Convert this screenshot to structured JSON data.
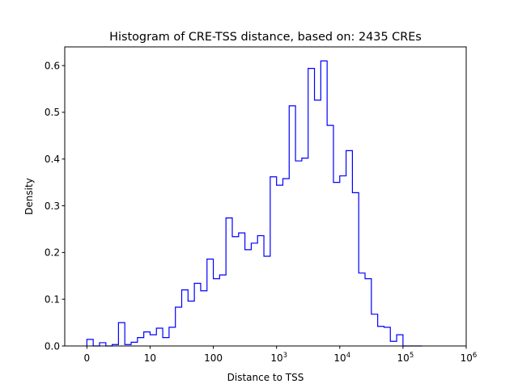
{
  "chart_data": {
    "type": "histogram-step",
    "title": "Histogram of CRE-TSS distance, based on: 2435 CREs",
    "xlabel": "Distance to TSS",
    "ylabel": "Density",
    "x_scale": "symlog",
    "x_range": [
      -0.35,
      6.0
    ],
    "ylim": [
      0,
      0.64
    ],
    "x_ticks": [
      {
        "value": 0,
        "label": "0"
      },
      {
        "value": 1,
        "label": "10"
      },
      {
        "value": 2,
        "label": "100"
      },
      {
        "value": 3,
        "label": "10^3"
      },
      {
        "value": 4,
        "label": "10^4"
      },
      {
        "value": 5,
        "label": "10^5"
      },
      {
        "value": 6,
        "label": "10^6"
      }
    ],
    "y_ticks": [
      "0.0",
      "0.1",
      "0.2",
      "0.3",
      "0.4",
      "0.5",
      "0.6"
    ],
    "series_color": "#0000ff",
    "bin_edges_log10": [
      0.0,
      0.1,
      0.2,
      0.3,
      0.4,
      0.5,
      0.6,
      0.7,
      0.8,
      0.9,
      1.0,
      1.1,
      1.2,
      1.3,
      1.4,
      1.5,
      1.6,
      1.7,
      1.8,
      1.9,
      2.0,
      2.1,
      2.2,
      2.3,
      2.4,
      2.5,
      2.6,
      2.7,
      2.8,
      2.9,
      3.0,
      3.1,
      3.2,
      3.3,
      3.4,
      3.5,
      3.6,
      3.7,
      3.8,
      3.9,
      4.0,
      4.1,
      4.2,
      4.3,
      4.4,
      4.5,
      4.6,
      4.7,
      4.8,
      4.9,
      5.0,
      5.1,
      5.2,
      5.3
    ],
    "densities": [
      0.014,
      0.0,
      0.007,
      0.0,
      0.003,
      0.05,
      0.003,
      0.008,
      0.018,
      0.03,
      0.024,
      0.038,
      0.018,
      0.04,
      0.083,
      0.12,
      0.096,
      0.134,
      0.118,
      0.186,
      0.144,
      0.152,
      0.274,
      0.234,
      0.242,
      0.206,
      0.22,
      0.236,
      0.192,
      0.362,
      0.344,
      0.358,
      0.514,
      0.396,
      0.402,
      0.594,
      0.526,
      0.61,
      0.472,
      0.35,
      0.364,
      0.418,
      0.328,
      0.156,
      0.144,
      0.068,
      0.042,
      0.04,
      0.01,
      0.024,
      0.0,
      0.0,
      0.0
    ]
  }
}
